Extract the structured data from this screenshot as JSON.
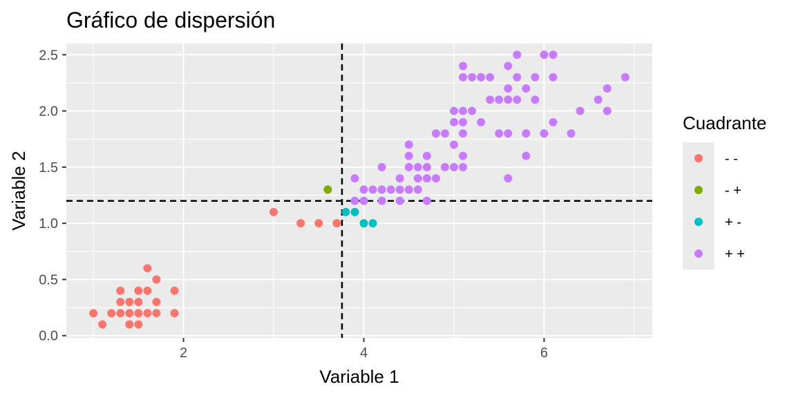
{
  "chart_data": {
    "type": "scatter",
    "title": "Gráfico de dispersión",
    "xlabel": "Variable 1",
    "ylabel": "Variable 2",
    "xlim": [
      0.7,
      7.2
    ],
    "ylim": [
      -0.02,
      2.6
    ],
    "x_ticks": [
      2,
      4,
      6
    ],
    "y_ticks": [
      0.0,
      0.5,
      1.0,
      1.5,
      2.0,
      2.5
    ],
    "y_tick_labels": [
      "0.0",
      "0.5",
      "1.0",
      "1.5",
      "2.0",
      "2.5"
    ],
    "grid": true,
    "reference_lines": {
      "vertical_x": 3.758,
      "horizontal_y": 1.199,
      "style": "dashed",
      "color": "#000000"
    },
    "legend": {
      "title": "Cuadrante",
      "placement": "right",
      "entries": [
        {
          "label": "- -",
          "color": "#F8766D"
        },
        {
          "label": "- +",
          "color": "#7CAE00"
        },
        {
          "label": "+ -",
          "color": "#00BFC4"
        },
        {
          "label": "+ +",
          "color": "#C77CFF"
        }
      ]
    },
    "series": [
      {
        "name": "- -",
        "color": "#F8766D",
        "points": [
          [
            1.0,
            0.2
          ],
          [
            1.1,
            0.1
          ],
          [
            1.2,
            0.2
          ],
          [
            1.3,
            0.4
          ],
          [
            1.3,
            0.3
          ],
          [
            1.3,
            0.2
          ],
          [
            1.4,
            0.3
          ],
          [
            1.4,
            0.2
          ],
          [
            1.4,
            0.1
          ],
          [
            1.5,
            0.4
          ],
          [
            1.5,
            0.3
          ],
          [
            1.5,
            0.2
          ],
          [
            1.5,
            0.1
          ],
          [
            1.6,
            0.6
          ],
          [
            1.6,
            0.4
          ],
          [
            1.6,
            0.2
          ],
          [
            1.7,
            0.5
          ],
          [
            1.7,
            0.3
          ],
          [
            1.7,
            0.2
          ],
          [
            1.9,
            0.4
          ],
          [
            1.9,
            0.2
          ],
          [
            3.0,
            1.1
          ],
          [
            3.3,
            1.0
          ],
          [
            3.5,
            1.0
          ],
          [
            3.7,
            1.0
          ]
        ]
      },
      {
        "name": "- +",
        "color": "#7CAE00",
        "points": [
          [
            3.6,
            1.3
          ]
        ]
      },
      {
        "name": "+ -",
        "color": "#00BFC4",
        "points": [
          [
            3.8,
            1.1
          ],
          [
            3.9,
            1.1
          ],
          [
            4.0,
            1.0
          ],
          [
            4.1,
            1.0
          ]
        ]
      },
      {
        "name": "+ +",
        "color": "#C77CFF",
        "points": [
          [
            3.9,
            1.4
          ],
          [
            3.9,
            1.2
          ],
          [
            4.0,
            1.3
          ],
          [
            4.0,
            1.2
          ],
          [
            4.1,
            1.3
          ],
          [
            4.2,
            1.5
          ],
          [
            4.2,
            1.3
          ],
          [
            4.2,
            1.2
          ],
          [
            4.3,
            1.3
          ],
          [
            4.4,
            1.4
          ],
          [
            4.4,
            1.3
          ],
          [
            4.4,
            1.2
          ],
          [
            4.5,
            1.7
          ],
          [
            4.5,
            1.6
          ],
          [
            4.5,
            1.5
          ],
          [
            4.5,
            1.3
          ],
          [
            4.6,
            1.5
          ],
          [
            4.6,
            1.4
          ],
          [
            4.6,
            1.3
          ],
          [
            4.7,
            1.6
          ],
          [
            4.7,
            1.5
          ],
          [
            4.7,
            1.4
          ],
          [
            4.7,
            1.2
          ],
          [
            4.8,
            1.8
          ],
          [
            4.8,
            1.4
          ],
          [
            4.9,
            1.8
          ],
          [
            4.9,
            1.5
          ],
          [
            5.0,
            2.0
          ],
          [
            5.0,
            1.9
          ],
          [
            5.0,
            1.7
          ],
          [
            5.0,
            1.5
          ],
          [
            5.1,
            2.4
          ],
          [
            5.1,
            2.3
          ],
          [
            5.1,
            2.0
          ],
          [
            5.1,
            1.9
          ],
          [
            5.1,
            1.8
          ],
          [
            5.1,
            1.6
          ],
          [
            5.1,
            1.5
          ],
          [
            5.2,
            2.3
          ],
          [
            5.2,
            2.0
          ],
          [
            5.3,
            2.3
          ],
          [
            5.3,
            1.9
          ],
          [
            5.4,
            2.3
          ],
          [
            5.4,
            2.1
          ],
          [
            5.5,
            2.1
          ],
          [
            5.5,
            1.8
          ],
          [
            5.6,
            2.4
          ],
          [
            5.6,
            2.2
          ],
          [
            5.6,
            2.1
          ],
          [
            5.6,
            1.8
          ],
          [
            5.6,
            1.4
          ],
          [
            5.7,
            2.5
          ],
          [
            5.7,
            2.3
          ],
          [
            5.7,
            2.1
          ],
          [
            5.8,
            2.2
          ],
          [
            5.8,
            1.8
          ],
          [
            5.8,
            1.6
          ],
          [
            5.9,
            2.3
          ],
          [
            5.9,
            2.1
          ],
          [
            6.0,
            2.5
          ],
          [
            6.0,
            1.8
          ],
          [
            6.1,
            2.5
          ],
          [
            6.1,
            2.3
          ],
          [
            6.1,
            1.9
          ],
          [
            6.3,
            1.8
          ],
          [
            6.4,
            2.0
          ],
          [
            6.6,
            2.1
          ],
          [
            6.7,
            2.2
          ],
          [
            6.7,
            2.0
          ],
          [
            6.9,
            2.3
          ]
        ]
      }
    ]
  }
}
